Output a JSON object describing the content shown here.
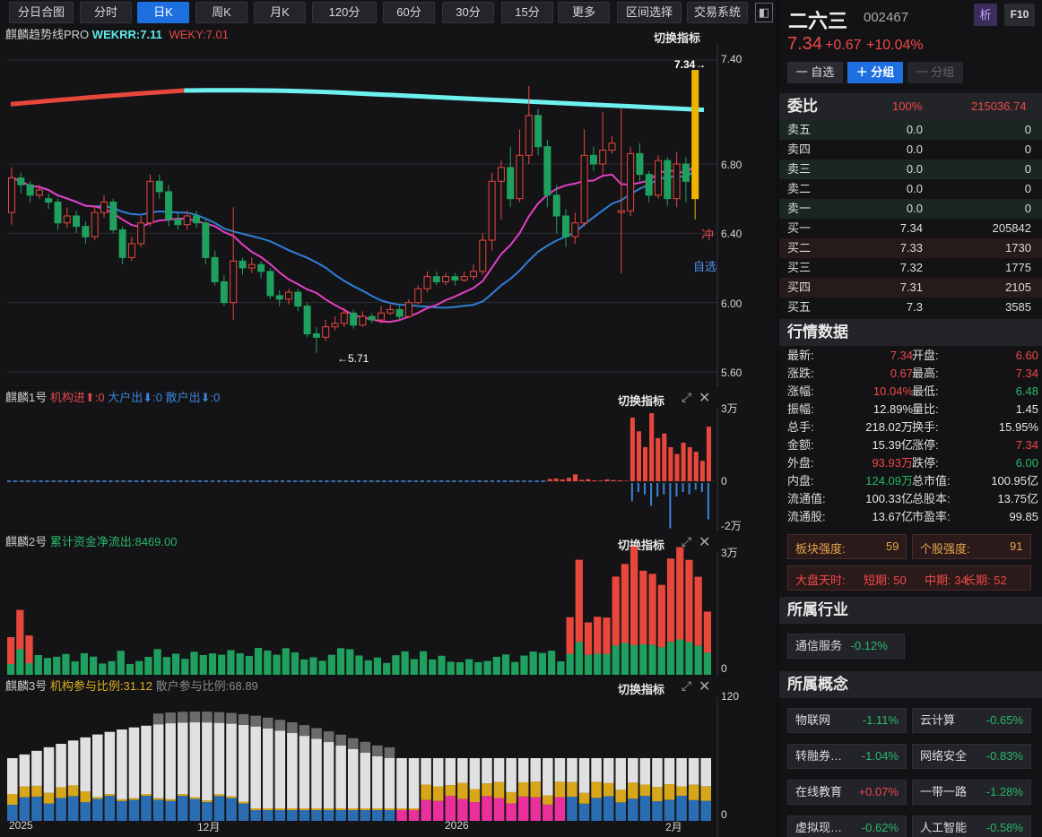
{
  "toolbar": {
    "buttons": [
      "分日合图",
      "分时",
      "日K",
      "周K",
      "月K",
      "120分",
      "60分",
      "30分",
      "15分",
      "更多",
      "区间选择",
      "交易系统"
    ],
    "active": "日K"
  },
  "main_chart": {
    "indicator": "麒麟趋势线PRO",
    "wekrr": "WEKRR:7.11",
    "weky": "WEKY:7.01",
    "switch_label": "切换指标",
    "y_ticks": [
      "7.40",
      "6.80",
      "6.40",
      "6.00",
      "5.60"
    ],
    "last_price_label": "7.34→",
    "low_label": "←5.71",
    "chong": "冲",
    "zixuan": "自选"
  },
  "panel1": {
    "name": "麒麟1号",
    "inst_in": "机构进⬆:0",
    "big_out": "大户出⬇:0",
    "retail_out": "散户出⬇:0",
    "switch_label": "切换指标",
    "y_ticks": [
      "3万",
      "0",
      "-2万"
    ]
  },
  "panel2": {
    "name": "麒麟2号",
    "flow": "累计资金净流出:8469.00",
    "switch_label": "切换指标",
    "y_ticks": [
      "3万",
      "0"
    ]
  },
  "panel3": {
    "name": "麒麟3号",
    "inst_ratio": "机构参与比例:31.12",
    "retail_ratio": "散户参与比例:68.89",
    "switch_label": "切换指标",
    "y_ticks": [
      "120",
      "0"
    ]
  },
  "x_axis": [
    "2025",
    "12月",
    "2026",
    "2月"
  ],
  "stock": {
    "name": "二六三",
    "code": "002467",
    "price": "7.34",
    "change": "+0.67",
    "change_pct": "+10.04%",
    "btn_analyze": "析",
    "btn_f10": "F10",
    "btn_watch": "一 自选",
    "btn_group": "＋ 分组",
    "btn_ungroup": "一 分组"
  },
  "orderbook": {
    "title": "委比",
    "ratio": "100%",
    "diff": "215036.74",
    "rows": [
      {
        "label": "卖五",
        "price": "0.0",
        "vol": "0"
      },
      {
        "label": "卖四",
        "price": "0.0",
        "vol": "0"
      },
      {
        "label": "卖三",
        "price": "0.0",
        "vol": "0"
      },
      {
        "label": "卖二",
        "price": "0.0",
        "vol": "0"
      },
      {
        "label": "卖一",
        "price": "0.0",
        "vol": "0"
      },
      {
        "label": "买一",
        "price": "7.34",
        "vol": "205842"
      },
      {
        "label": "买二",
        "price": "7.33",
        "vol": "1730"
      },
      {
        "label": "买三",
        "price": "7.32",
        "vol": "1775"
      },
      {
        "label": "买四",
        "price": "7.31",
        "vol": "2105"
      },
      {
        "label": "买五",
        "price": "7.3",
        "vol": "3585"
      }
    ]
  },
  "quotes": {
    "title": "行情数据",
    "rows": [
      [
        {
          "k": "最新:",
          "v": "7.34",
          "c": "red"
        },
        {
          "k": "开盘:",
          "v": "6.60",
          "c": "red"
        }
      ],
      [
        {
          "k": "涨跌:",
          "v": "0.67",
          "c": "red"
        },
        {
          "k": "最高:",
          "v": "7.34",
          "c": "red"
        }
      ],
      [
        {
          "k": "涨幅:",
          "v": "10.04%",
          "c": "red"
        },
        {
          "k": "最低:",
          "v": "6.48",
          "c": "green"
        }
      ],
      [
        {
          "k": "振幅:",
          "v": "12.89%",
          "c": "white"
        },
        {
          "k": "量比:",
          "v": "1.45",
          "c": "white"
        }
      ],
      [
        {
          "k": "总手:",
          "v": "218.02万",
          "c": "white"
        },
        {
          "k": "换手:",
          "v": "15.95%",
          "c": "white"
        }
      ],
      [
        {
          "k": "金额:",
          "v": "15.39亿",
          "c": "white"
        },
        {
          "k": "涨停:",
          "v": "7.34",
          "c": "red"
        }
      ],
      [
        {
          "k": "外盘:",
          "v": "93.93万",
          "c": "red"
        },
        {
          "k": "跌停:",
          "v": "6.00",
          "c": "green"
        }
      ],
      [
        {
          "k": "内盘:",
          "v": "124.09万",
          "c": "green"
        },
        {
          "k": "总市值:",
          "v": "100.95亿",
          "c": "white"
        }
      ],
      [
        {
          "k": "流通值:",
          "v": "100.33亿",
          "c": "white"
        },
        {
          "k": "总股本:",
          "v": "13.75亿",
          "c": "white"
        }
      ],
      [
        {
          "k": "流通股:",
          "v": "13.67亿",
          "c": "white"
        },
        {
          "k": "市盈率:",
          "v": "99.85",
          "c": "white"
        }
      ]
    ]
  },
  "strength": {
    "sector_label": "板块强度:",
    "sector_value": "59",
    "stock_label": "个股强度:",
    "stock_value": "91",
    "market": "大盘天时:",
    "short": "短期: 50",
    "mid": "中期: 34",
    "long": "长期: 52"
  },
  "industry": {
    "title": "所属行业",
    "items": [
      {
        "name": "通信服务",
        "pct": "-0.12%"
      }
    ]
  },
  "concepts": {
    "title": "所属概念",
    "items": [
      {
        "name": "物联网",
        "pct": "-1.11%",
        "c": "green"
      },
      {
        "name": "云计算",
        "pct": "-0.65%",
        "c": "green"
      },
      {
        "name": "转融券…",
        "pct": "-1.04%",
        "c": "green"
      },
      {
        "name": "网络安全",
        "pct": "-0.83%",
        "c": "green"
      },
      {
        "name": "在线教育",
        "pct": "+0.07%",
        "c": "red"
      },
      {
        "name": "一带一路",
        "pct": "-1.28%",
        "c": "green"
      },
      {
        "name": "虚拟现…",
        "pct": "-0.62%",
        "c": "green"
      },
      {
        "name": "人工智能",
        "pct": "-0.58%",
        "c": "green"
      }
    ]
  },
  "chart_data": {
    "type": "candlestick",
    "price_ylim": [
      5.6,
      7.4
    ],
    "candles": [
      [
        6.52,
        6.72,
        6.78,
        6.45
      ],
      [
        6.72,
        6.68,
        6.75,
        6.63
      ],
      [
        6.68,
        6.62,
        6.7,
        6.58
      ],
      [
        6.62,
        6.65,
        6.68,
        6.6
      ],
      [
        6.6,
        6.58,
        6.63,
        6.54
      ],
      [
        6.58,
        6.46,
        6.6,
        6.42
      ],
      [
        6.46,
        6.5,
        6.55,
        6.43
      ],
      [
        6.5,
        6.44,
        6.53,
        6.4
      ],
      [
        6.44,
        6.38,
        6.47,
        6.34
      ],
      [
        6.38,
        6.52,
        6.56,
        6.36
      ],
      [
        6.52,
        6.58,
        6.62,
        6.49
      ],
      [
        6.58,
        6.42,
        6.6,
        6.4
      ],
      [
        6.42,
        6.26,
        6.44,
        6.22
      ],
      [
        6.26,
        6.34,
        6.38,
        6.24
      ],
      [
        6.34,
        6.46,
        6.5,
        6.32
      ],
      [
        6.46,
        6.7,
        6.74,
        6.44
      ],
      [
        6.7,
        6.64,
        6.74,
        6.6
      ],
      [
        6.64,
        6.48,
        6.68,
        6.44
      ],
      [
        6.48,
        6.45,
        6.52,
        6.42
      ],
      [
        6.45,
        6.5,
        6.53,
        6.42
      ],
      [
        6.5,
        6.46,
        6.53,
        6.43
      ],
      [
        6.46,
        6.26,
        6.48,
        6.22
      ],
      [
        6.26,
        6.12,
        6.3,
        6.1
      ],
      [
        6.12,
        6.0,
        6.16,
        5.98
      ],
      [
        6.0,
        6.24,
        6.55,
        5.9
      ],
      [
        6.24,
        6.2,
        6.26,
        6.16
      ],
      [
        6.2,
        6.22,
        6.26,
        6.17
      ],
      [
        6.22,
        6.18,
        6.24,
        6.14
      ],
      [
        6.18,
        6.04,
        6.2,
        6.02
      ],
      [
        6.04,
        6.02,
        6.07,
        5.98
      ],
      [
        6.02,
        6.06,
        6.08,
        5.99
      ],
      [
        6.06,
        5.98,
        6.08,
        5.95
      ],
      [
        5.98,
        5.82,
        6.0,
        5.8
      ],
      [
        5.82,
        5.8,
        5.86,
        5.71
      ],
      [
        5.8,
        5.86,
        5.9,
        5.78
      ],
      [
        5.86,
        5.88,
        5.92,
        5.84
      ],
      [
        5.88,
        5.94,
        5.97,
        5.86
      ],
      [
        5.94,
        5.87,
        5.96,
        5.85
      ],
      [
        5.87,
        5.92,
        5.95,
        5.86
      ],
      [
        5.92,
        5.9,
        5.94,
        5.88
      ],
      [
        5.9,
        5.94,
        5.98,
        5.88
      ],
      [
        5.94,
        5.96,
        5.99,
        5.93
      ],
      [
        5.96,
        5.92,
        5.98,
        5.9
      ],
      [
        5.92,
        6.0,
        6.02,
        5.91
      ],
      [
        6.0,
        6.08,
        6.1,
        5.99
      ],
      [
        6.08,
        6.15,
        6.18,
        6.06
      ],
      [
        6.15,
        6.12,
        6.18,
        6.1
      ],
      [
        6.12,
        6.15,
        6.17,
        6.1
      ],
      [
        6.15,
        6.13,
        6.17,
        6.1
      ],
      [
        6.13,
        6.15,
        6.18,
        6.12
      ],
      [
        6.15,
        6.18,
        6.22,
        6.13
      ],
      [
        6.18,
        6.36,
        6.4,
        6.16
      ],
      [
        6.36,
        6.7,
        6.75,
        6.3
      ],
      [
        6.7,
        6.78,
        6.82,
        6.48
      ],
      [
        6.78,
        6.6,
        6.9,
        6.55
      ],
      [
        6.6,
        6.85,
        7.0,
        6.58
      ],
      [
        6.85,
        7.08,
        7.25,
        6.8
      ],
      [
        7.08,
        6.9,
        7.12,
        6.85
      ],
      [
        6.9,
        6.62,
        6.94,
        6.55
      ],
      [
        6.62,
        6.5,
        6.68,
        6.4
      ],
      [
        6.5,
        6.38,
        6.54,
        6.32
      ],
      [
        6.38,
        6.46,
        6.52,
        6.34
      ],
      [
        6.46,
        6.85,
        7.0,
        6.44
      ],
      [
        6.85,
        6.8,
        6.9,
        6.76
      ],
      [
        6.8,
        6.88,
        7.1,
        6.74
      ],
      [
        6.88,
        6.92,
        6.96,
        6.86
      ],
      [
        6.52,
        6.53,
        7.12,
        6.17
      ],
      [
        6.53,
        6.86,
        6.9,
        6.5
      ],
      [
        6.86,
        6.74,
        6.92,
        6.7
      ],
      [
        6.74,
        6.62,
        6.76,
        6.58
      ],
      [
        6.62,
        6.82,
        6.85,
        6.6
      ],
      [
        6.82,
        6.6,
        6.84,
        6.56
      ],
      [
        6.6,
        6.8,
        6.87,
        6.55
      ],
      [
        6.8,
        6.7,
        6.84,
        6.58
      ],
      [
        6.6,
        7.34,
        7.34,
        6.48
      ]
    ],
    "panel1_ylim": [
      -20000,
      30000
    ],
    "panel1_pos": [
      0,
      0,
      0,
      0,
      0,
      0,
      0,
      0,
      0,
      0,
      0,
      0,
      0,
      0,
      0,
      0,
      0,
      0,
      0,
      0,
      0,
      0,
      0,
      0,
      0,
      0,
      0,
      0,
      0,
      0,
      0,
      0,
      0,
      0,
      0,
      0,
      0,
      0,
      0,
      0,
      0,
      0,
      0,
      0,
      0,
      0,
      0,
      0,
      0,
      0,
      0,
      0,
      0,
      0,
      0,
      0,
      0,
      0,
      0,
      0,
      0,
      0,
      0,
      0,
      0,
      0,
      0,
      0,
      0,
      0,
      0,
      0,
      0,
      0,
      0,
      0,
      0,
      0,
      0,
      0,
      0,
      0,
      0,
      0,
      0,
      1000,
      1200,
      800,
      1500,
      3000,
      600,
      900,
      400,
      300,
      800,
      500,
      400,
      200,
      28000,
      22000,
      15000,
      30000,
      19000,
      21000,
      15000,
      12000,
      17000,
      15000,
      13000,
      9000,
      24000
    ],
    "panel1_neg": [
      0,
      0,
      0,
      0,
      0,
      0,
      0,
      0,
      0,
      0,
      0,
      0,
      0,
      0,
      0,
      0,
      0,
      0,
      0,
      0,
      0,
      0,
      0,
      0,
      0,
      0,
      0,
      0,
      0,
      0,
      0,
      0,
      0,
      0,
      0,
      0,
      0,
      0,
      0,
      0,
      0,
      0,
      0,
      0,
      0,
      0,
      0,
      0,
      0,
      0,
      0,
      0,
      0,
      0,
      0,
      0,
      0,
      0,
      0,
      0,
      0,
      0,
      0,
      0,
      0,
      0,
      0,
      0,
      0,
      0,
      0,
      0,
      0,
      0,
      0,
      0,
      0,
      0,
      0,
      0,
      0,
      0,
      0,
      0,
      0,
      0,
      0,
      0,
      0,
      0,
      0,
      0,
      0,
      0,
      0,
      0,
      0,
      0,
      -8000,
      -4000,
      -5000,
      -10000,
      -6000,
      -5000,
      -20000,
      -6000,
      -4000,
      -5000,
      -3000,
      -4000,
      -16000
    ]
  }
}
